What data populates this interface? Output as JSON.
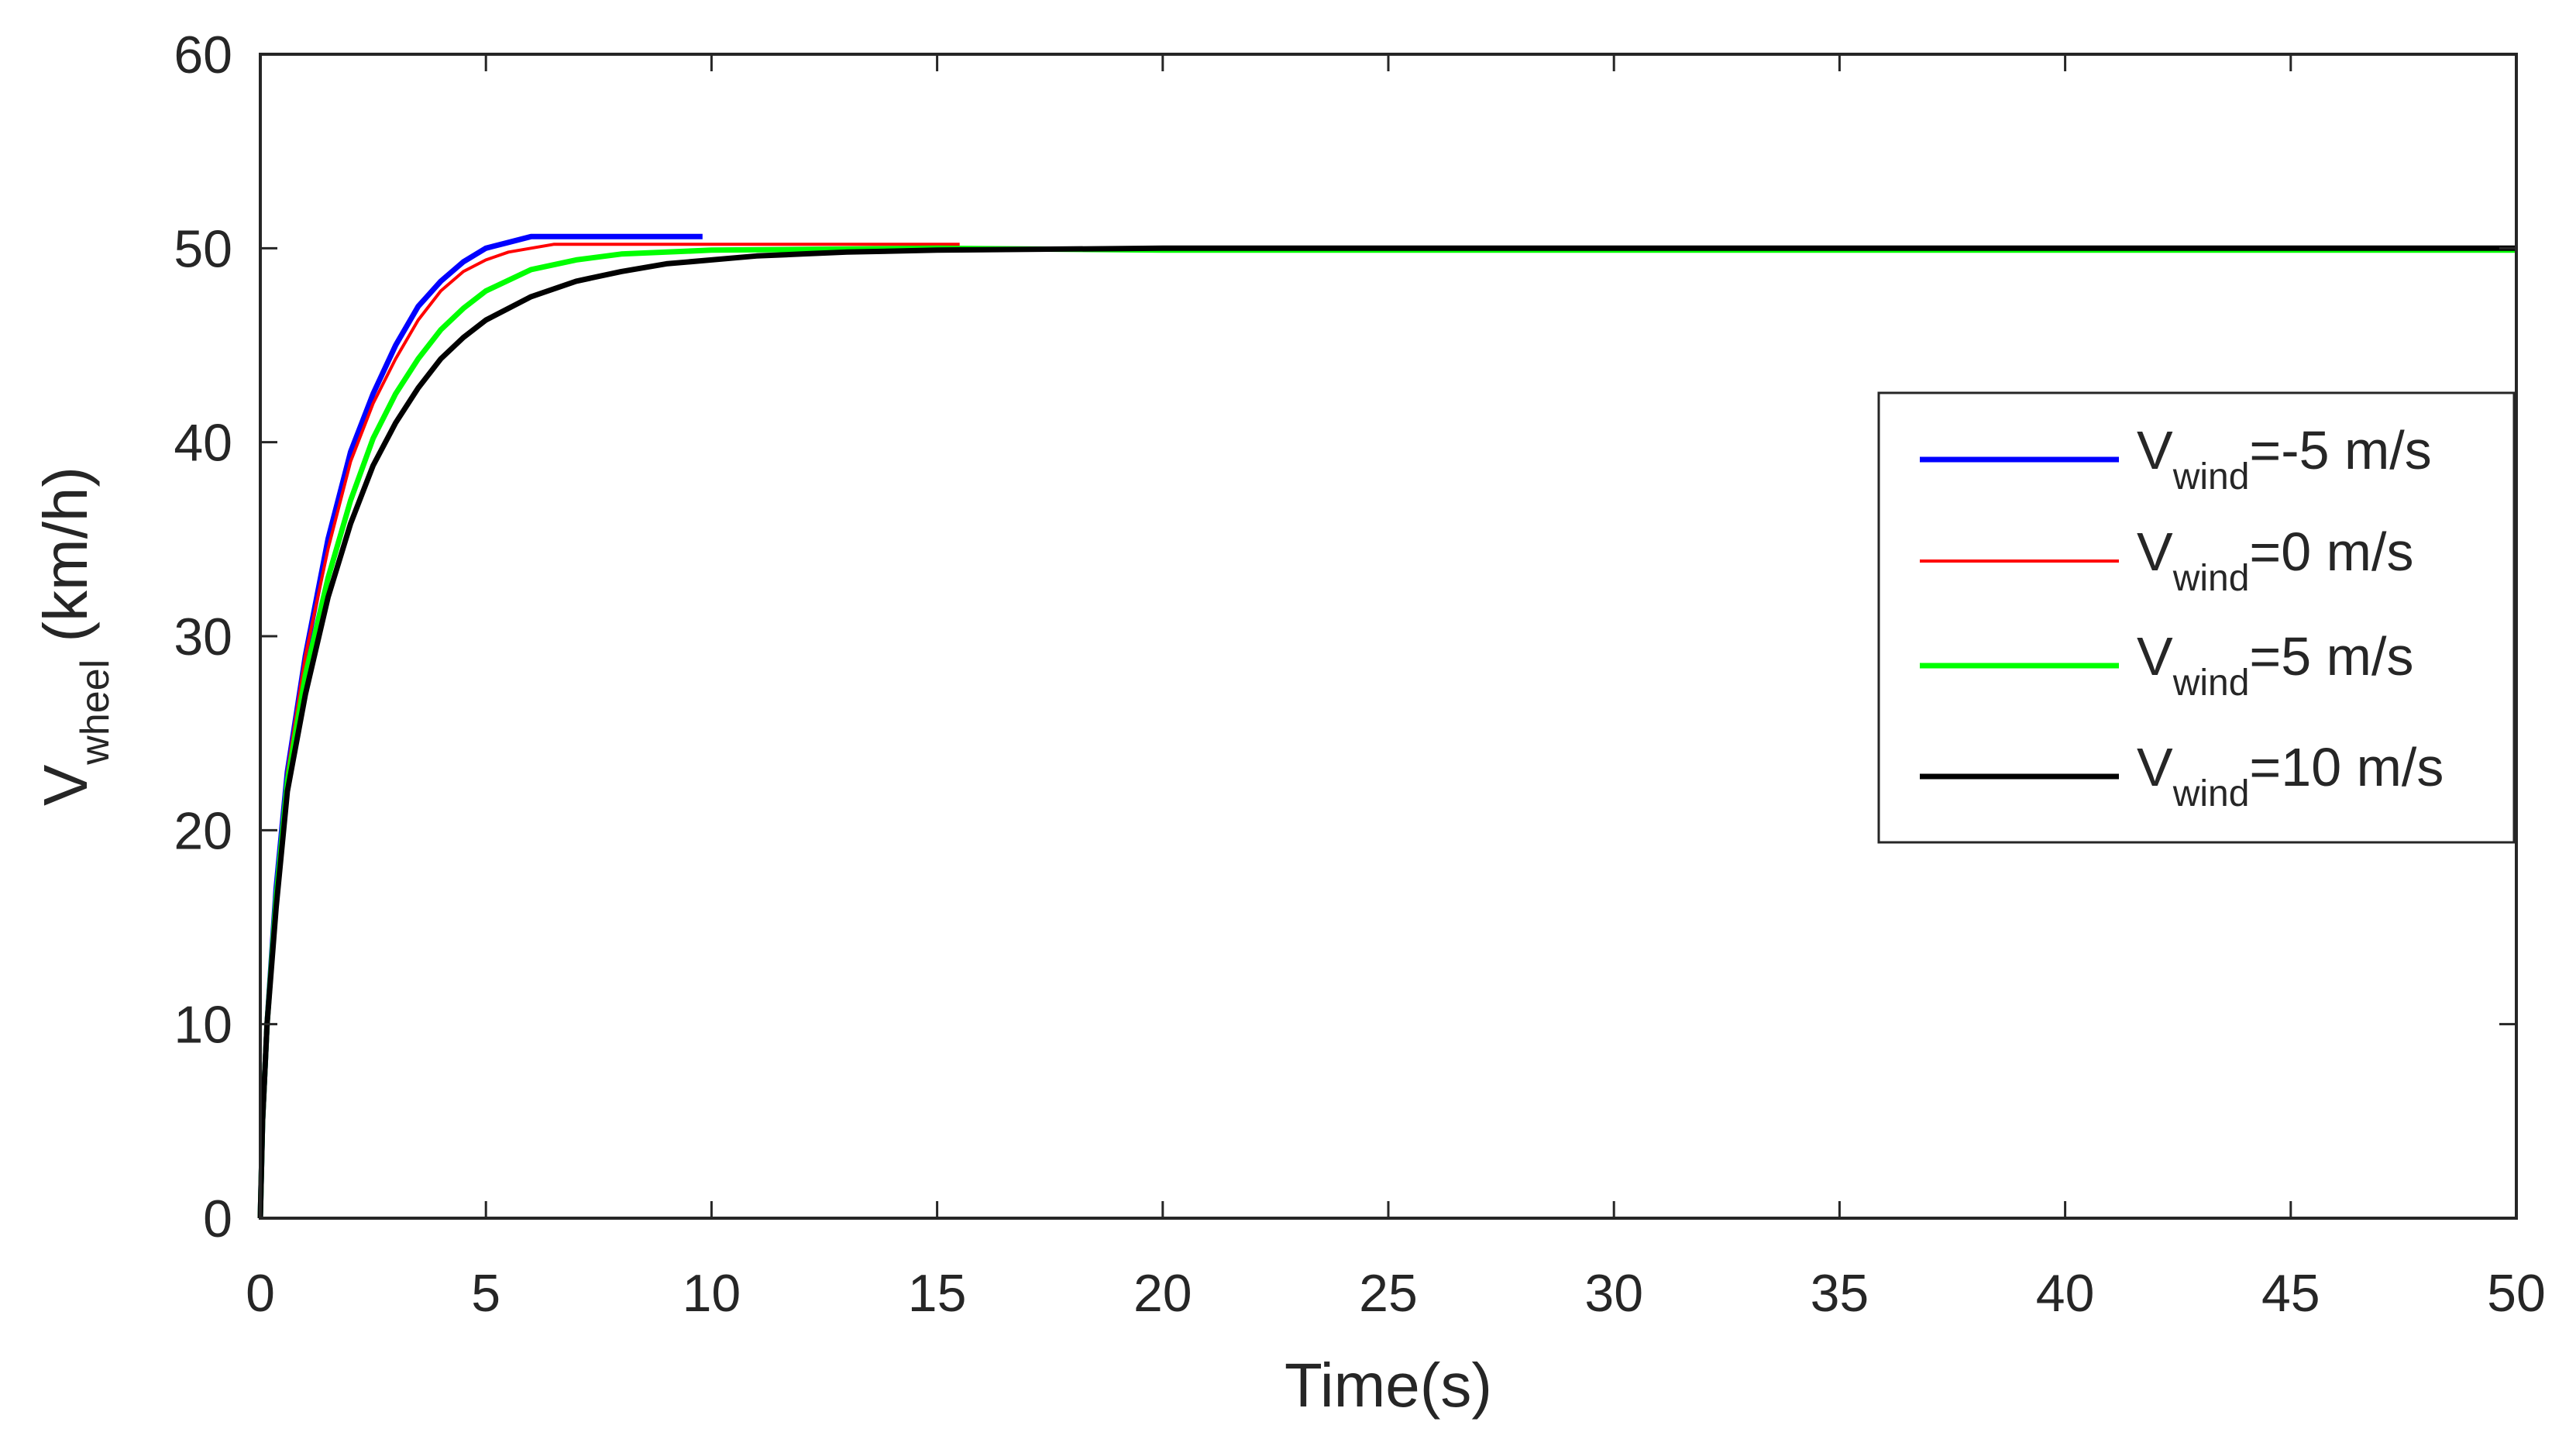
{
  "chart_data": {
    "type": "line",
    "xlabel": "Time(s)",
    "ylabel": {
      "main": "V",
      "sub": "wheel",
      "rest": " (km/h)"
    },
    "xlim": [
      0,
      50
    ],
    "ylim": [
      0,
      60
    ],
    "xticks": [
      0,
      5,
      10,
      15,
      20,
      25,
      30,
      35,
      40,
      45,
      50
    ],
    "yticks": [
      0,
      10,
      20,
      30,
      40,
      50,
      60
    ],
    "grid": false,
    "legend_position": "right",
    "series": [
      {
        "legend": {
          "main": "V",
          "sub": "wind",
          "rest": "=-5 m/s"
        },
        "color": "#0000ff",
        "points": [
          [
            0,
            0
          ],
          [
            0.05,
            5
          ],
          [
            0.15,
            10
          ],
          [
            0.35,
            17
          ],
          [
            0.6,
            23
          ],
          [
            1,
            29
          ],
          [
            1.5,
            35
          ],
          [
            2,
            39.5
          ],
          [
            2.5,
            42.5
          ],
          [
            3,
            45
          ],
          [
            3.5,
            47
          ],
          [
            4,
            48.3
          ],
          [
            4.5,
            49.3
          ],
          [
            5,
            50
          ],
          [
            5.5,
            50.3
          ],
          [
            6,
            50.6
          ],
          [
            7,
            50.6
          ],
          [
            8,
            50.6
          ],
          [
            9.8,
            50.6
          ]
        ]
      },
      {
        "legend": {
          "main": "V",
          "sub": "wind",
          "rest": "=0 m/s"
        },
        "color": "#ff0000",
        "points": [
          [
            0,
            0
          ],
          [
            0.05,
            5
          ],
          [
            0.15,
            10
          ],
          [
            0.35,
            17
          ],
          [
            0.6,
            23
          ],
          [
            1,
            29
          ],
          [
            1.5,
            34.5
          ],
          [
            2,
            39
          ],
          [
            2.5,
            42
          ],
          [
            3,
            44.3
          ],
          [
            3.5,
            46.3
          ],
          [
            4,
            47.8
          ],
          [
            4.5,
            48.8
          ],
          [
            5,
            49.4
          ],
          [
            5.5,
            49.8
          ],
          [
            6,
            50
          ],
          [
            6.5,
            50.2
          ],
          [
            10,
            50.2
          ],
          [
            15.5,
            50.2
          ]
        ]
      },
      {
        "legend": {
          "main": "V",
          "sub": "wind",
          "rest": "=5 m/s"
        },
        "color": "#00ff00",
        "points": [
          [
            0,
            0
          ],
          [
            0.05,
            5
          ],
          [
            0.15,
            10
          ],
          [
            0.35,
            16.5
          ],
          [
            0.6,
            22.5
          ],
          [
            1,
            28
          ],
          [
            1.5,
            33
          ],
          [
            2,
            37
          ],
          [
            2.5,
            40.2
          ],
          [
            3,
            42.5
          ],
          [
            3.5,
            44.3
          ],
          [
            4,
            45.8
          ],
          [
            4.5,
            46.9
          ],
          [
            5,
            47.8
          ],
          [
            6,
            48.9
          ],
          [
            7,
            49.4
          ],
          [
            8,
            49.7
          ],
          [
            10,
            49.9
          ],
          [
            15,
            50
          ],
          [
            20,
            49.9
          ],
          [
            50,
            49.9
          ]
        ]
      },
      {
        "legend": {
          "main": "V",
          "sub": "wind",
          "rest": "=10 m/s"
        },
        "color": "#000000",
        "points": [
          [
            0,
            0
          ],
          [
            0.05,
            5
          ],
          [
            0.15,
            10
          ],
          [
            0.35,
            16
          ],
          [
            0.6,
            22
          ],
          [
            1,
            27
          ],
          [
            1.5,
            32
          ],
          [
            2,
            35.8
          ],
          [
            2.5,
            38.8
          ],
          [
            3,
            41
          ],
          [
            3.5,
            42.8
          ],
          [
            4,
            44.3
          ],
          [
            4.5,
            45.4
          ],
          [
            5,
            46.3
          ],
          [
            6,
            47.5
          ],
          [
            7,
            48.3
          ],
          [
            8,
            48.8
          ],
          [
            9,
            49.2
          ],
          [
            10,
            49.4
          ],
          [
            11,
            49.6
          ],
          [
            12,
            49.7
          ],
          [
            13,
            49.8
          ],
          [
            15,
            49.9
          ],
          [
            20,
            50
          ],
          [
            50,
            50
          ]
        ]
      }
    ]
  }
}
